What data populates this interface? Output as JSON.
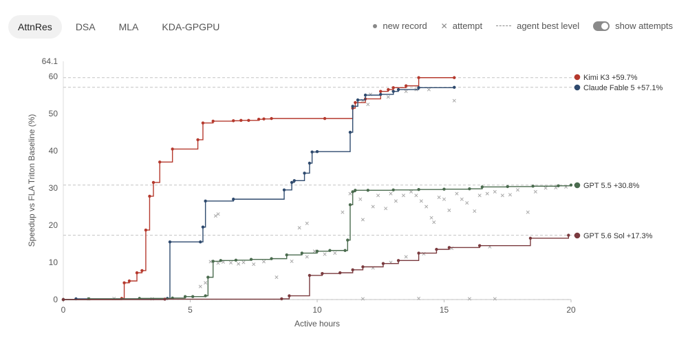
{
  "tabs": [
    {
      "label": "AttnRes",
      "active": true
    },
    {
      "label": "DSA",
      "active": false
    },
    {
      "label": "MLA",
      "active": false
    },
    {
      "label": "KDA-GPGPU",
      "active": false
    }
  ],
  "legend": {
    "new_record": "new record",
    "attempt": "attempt",
    "best_level": "agent best level",
    "show_attempts": "show attempts",
    "show_attempts_on": true
  },
  "chart_data": {
    "type": "line",
    "xlabel": "Active hours",
    "ylabel": "Speedup vs FLA Triton Baseline (%)",
    "xlim": [
      0,
      20
    ],
    "ylim": [
      0,
      64.1
    ],
    "x_ticks": [
      "0",
      "5",
      "10",
      "15",
      "20"
    ],
    "y_ticks": [
      "0",
      "10",
      "20",
      "30",
      "40",
      "50",
      "60"
    ],
    "y_top_label": "64.1",
    "grid": false,
    "best_levels": [
      59.7,
      57.1,
      30.8,
      17.3
    ],
    "series": [
      {
        "name": "Kimi K3",
        "end_label": "Kimi K3 +59.7%",
        "color": "#b5392d",
        "points": [
          [
            0,
            0
          ],
          [
            2.3,
            0.3
          ],
          [
            2.4,
            4.5
          ],
          [
            2.6,
            5.0
          ],
          [
            2.9,
            7.2
          ],
          [
            3.1,
            7.8
          ],
          [
            3.25,
            18.7
          ],
          [
            3.4,
            27.8
          ],
          [
            3.55,
            31.5
          ],
          [
            3.8,
            37.0
          ],
          [
            4.3,
            40.5
          ],
          [
            5.3,
            43.0
          ],
          [
            5.5,
            47.5
          ],
          [
            5.9,
            48.0
          ],
          [
            6.7,
            48.1
          ],
          [
            7.0,
            48.2
          ],
          [
            7.3,
            48.2
          ],
          [
            7.7,
            48.5
          ],
          [
            7.9,
            48.6
          ],
          [
            8.2,
            48.7
          ],
          [
            10.3,
            48.7
          ],
          [
            11.4,
            51.5
          ],
          [
            11.5,
            53.0
          ],
          [
            11.9,
            54.0
          ],
          [
            12.5,
            56.0
          ],
          [
            12.8,
            56.5
          ],
          [
            13.0,
            57.0
          ],
          [
            13.5,
            57.5
          ],
          [
            14.0,
            59.7
          ],
          [
            15.4,
            59.7
          ]
        ]
      },
      {
        "name": "Claude Fable 5",
        "end_label": "Claude Fable 5 +57.1%",
        "color": "#2e4a6e",
        "points": [
          [
            0,
            0
          ],
          [
            0.5,
            0.2
          ],
          [
            4.1,
            0.3
          ],
          [
            4.2,
            15.5
          ],
          [
            5.4,
            15.5
          ],
          [
            5.5,
            19.5
          ],
          [
            5.6,
            26.5
          ],
          [
            6.7,
            27.0
          ],
          [
            8.7,
            29.5
          ],
          [
            9.0,
            31.5
          ],
          [
            9.1,
            32.0
          ],
          [
            9.5,
            34.0
          ],
          [
            9.7,
            36.7
          ],
          [
            9.8,
            39.7
          ],
          [
            10.0,
            39.8
          ],
          [
            11.3,
            45.0
          ],
          [
            11.4,
            52.0
          ],
          [
            11.6,
            53.7
          ],
          [
            11.9,
            55.0
          ],
          [
            12.5,
            55.2
          ],
          [
            13.0,
            56.0
          ],
          [
            13.2,
            56.5
          ],
          [
            14.0,
            57.0
          ],
          [
            15.4,
            57.1
          ]
        ]
      },
      {
        "name": "GPT 5.5",
        "end_label": "GPT 5.5 +30.8%",
        "color": "#4a6b4e",
        "points": [
          [
            0,
            0
          ],
          [
            1.0,
            0.2
          ],
          [
            3.0,
            0.3
          ],
          [
            4.3,
            0.4
          ],
          [
            4.8,
            0.8
          ],
          [
            5.1,
            0.8
          ],
          [
            5.6,
            1.0
          ],
          [
            5.7,
            6.0
          ],
          [
            5.9,
            10.3
          ],
          [
            6.2,
            10.5
          ],
          [
            6.8,
            10.6
          ],
          [
            7.4,
            10.8
          ],
          [
            8.2,
            11.0
          ],
          [
            8.8,
            12.0
          ],
          [
            9.4,
            12.5
          ],
          [
            10.0,
            13.0
          ],
          [
            10.5,
            13.2
          ],
          [
            11.1,
            13.2
          ],
          [
            11.2,
            16.0
          ],
          [
            11.3,
            25.5
          ],
          [
            11.4,
            29.0
          ],
          [
            11.5,
            29.4
          ],
          [
            12.0,
            29.4
          ],
          [
            13.0,
            29.5
          ],
          [
            14.0,
            29.6
          ],
          [
            15.0,
            29.7
          ],
          [
            16.0,
            29.8
          ],
          [
            16.5,
            30.3
          ],
          [
            17.5,
            30.4
          ],
          [
            18.5,
            30.5
          ],
          [
            19.5,
            30.6
          ],
          [
            20.0,
            30.8
          ]
        ]
      },
      {
        "name": "GPT 5.6 Sol",
        "end_label": "GPT 5.6 Sol +17.3%",
        "color": "#7a3a3e",
        "points": [
          [
            0,
            0
          ],
          [
            4.0,
            0.1
          ],
          [
            8.6,
            0.2
          ],
          [
            8.9,
            1.0
          ],
          [
            9.7,
            6.5
          ],
          [
            10.2,
            7.0
          ],
          [
            10.9,
            7.2
          ],
          [
            11.4,
            8.0
          ],
          [
            11.8,
            8.8
          ],
          [
            12.6,
            9.7
          ],
          [
            13.2,
            10.5
          ],
          [
            14.0,
            12.5
          ],
          [
            14.7,
            13.5
          ],
          [
            15.2,
            14.0
          ],
          [
            16.4,
            14.5
          ],
          [
            18.4,
            16.5
          ],
          [
            19.9,
            17.3
          ]
        ]
      }
    ],
    "attempts": [
      [
        5.4,
        3.5
      ],
      [
        5.6,
        4.5
      ],
      [
        5.8,
        10.2
      ],
      [
        6.1,
        9.8
      ],
      [
        6.3,
        10.1
      ],
      [
        6.6,
        9.9
      ],
      [
        6.9,
        9.6
      ],
      [
        7.1,
        10.0
      ],
      [
        7.5,
        9.5
      ],
      [
        7.9,
        10.2
      ],
      [
        8.4,
        6.0
      ],
      [
        9.0,
        10.3
      ],
      [
        9.3,
        19.3
      ],
      [
        9.6,
        11.5
      ],
      [
        9.9,
        13.0
      ],
      [
        10.3,
        12.2
      ],
      [
        10.7,
        12.5
      ],
      [
        6.0,
        22.5
      ],
      [
        6.1,
        23.0
      ],
      [
        9.6,
        20.5
      ],
      [
        11.0,
        23.5
      ],
      [
        11.3,
        28.5
      ],
      [
        11.7,
        27.0
      ],
      [
        11.8,
        21.5
      ],
      [
        12.2,
        25.0
      ],
      [
        12.4,
        28.0
      ],
      [
        12.7,
        24.5
      ],
      [
        12.9,
        28.5
      ],
      [
        13.1,
        26.5
      ],
      [
        13.4,
        28.0
      ],
      [
        13.7,
        29.0
      ],
      [
        13.9,
        28.0
      ],
      [
        14.1,
        26.5
      ],
      [
        14.3,
        25.0
      ],
      [
        14.5,
        22.0
      ],
      [
        14.6,
        20.8
      ],
      [
        14.8,
        27.5
      ],
      [
        15.0,
        27.0
      ],
      [
        15.2,
        24.0
      ],
      [
        15.5,
        28.5
      ],
      [
        15.7,
        27.0
      ],
      [
        15.9,
        26.0
      ],
      [
        16.2,
        23.8
      ],
      [
        16.4,
        28.0
      ],
      [
        16.7,
        28.5
      ],
      [
        17.0,
        29.0
      ],
      [
        17.3,
        28.0
      ],
      [
        17.6,
        28.2
      ],
      [
        17.9,
        29.5
      ],
      [
        18.3,
        23.5
      ],
      [
        18.6,
        29.0
      ],
      [
        19.0,
        30.0
      ],
      [
        19.4,
        30.1
      ],
      [
        19.8,
        30.3
      ],
      [
        15.4,
        53.5
      ],
      [
        14.4,
        56.5
      ],
      [
        13.9,
        56.5
      ],
      [
        13.5,
        56.0
      ],
      [
        12.8,
        54.5
      ],
      [
        12.1,
        55.2
      ],
      [
        11.8,
        53.5
      ],
      [
        12.0,
        52.5
      ],
      [
        1.0,
        0.2
      ],
      [
        2.0,
        0.3
      ],
      [
        3.5,
        0.2
      ],
      [
        11.8,
        0.2
      ],
      [
        14.0,
        0.3
      ],
      [
        16.0,
        0.2
      ],
      [
        17.0,
        0.2
      ],
      [
        12.2,
        8.5
      ],
      [
        12.9,
        10.0
      ],
      [
        13.5,
        11.5
      ],
      [
        14.2,
        12.3
      ],
      [
        15.3,
        13.8
      ],
      [
        16.8,
        14.2
      ]
    ]
  }
}
